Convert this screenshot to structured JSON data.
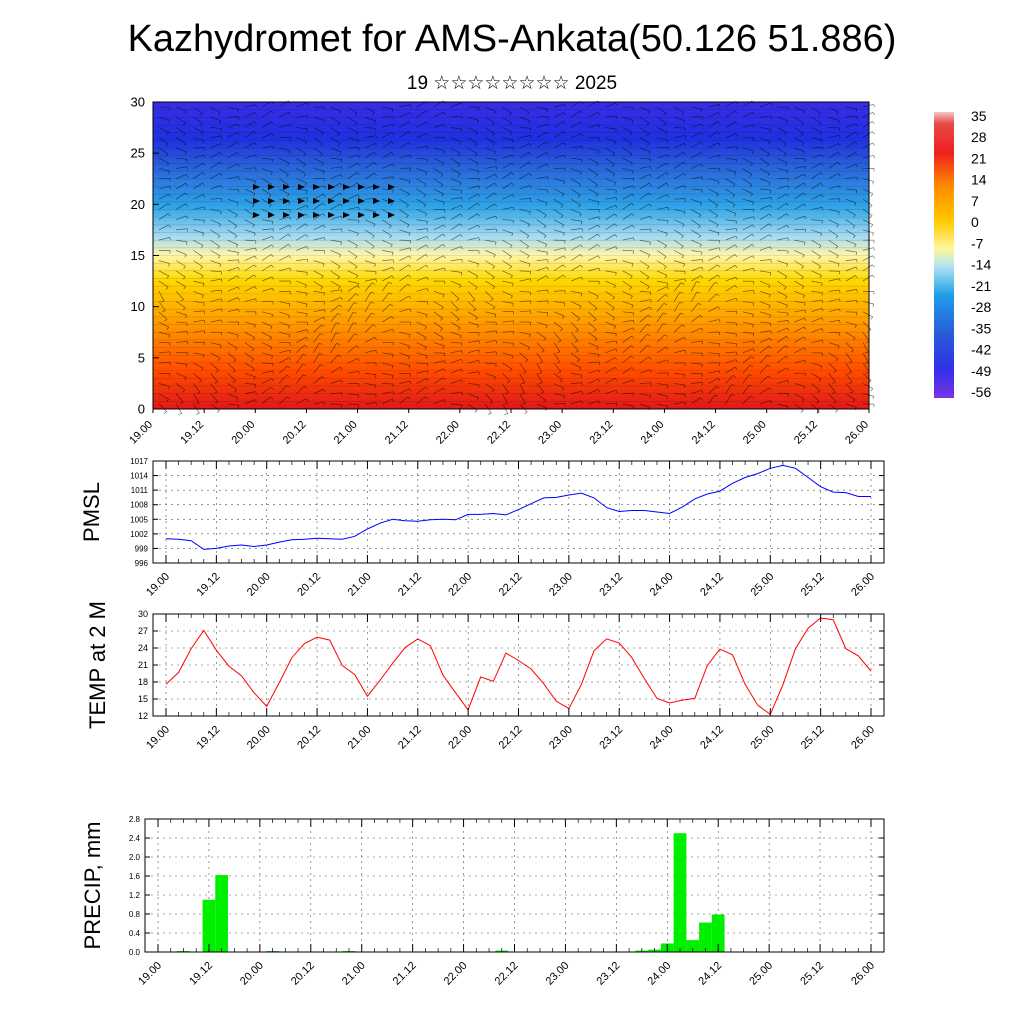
{
  "title": "Kazhydromet for AMS-Ankata(50.126 51.886)",
  "subtitle": "19 ☆☆☆☆☆☆☆☆ 2025",
  "chart_data": [
    {
      "type": "heatmap",
      "id": "cross-section",
      "ylim": [
        0,
        30
      ],
      "yticks": [
        "0",
        "5",
        "10",
        "15",
        "20",
        "25",
        "30"
      ],
      "xticks": [
        "19.00",
        "19.12",
        "20.00",
        "20.12",
        "21.00",
        "21.12",
        "22.00",
        "22.12",
        "23.00",
        "23.12",
        "24.00",
        "24.12",
        "25.00",
        "25.12",
        "26.00"
      ],
      "colorbar": {
        "labels": [
          "35",
          "28",
          "21",
          "14",
          "7",
          "0",
          "-7",
          "-14",
          "-21",
          "-28",
          "-35",
          "-42",
          "-49",
          "-56"
        ],
        "colors": [
          "#f2c8c8",
          "#ee2020",
          "#ff5a00",
          "#ff9b00",
          "#ffd000",
          "#fff7a0",
          "#7ad0f0",
          "#1e9ee6",
          "#2a5ad8",
          "#2a2ae6",
          "#6a3ae6"
        ]
      },
      "overlay": "wind barbs"
    },
    {
      "type": "line",
      "id": "pmsl",
      "ylabel": "PMSL",
      "ylim": [
        996,
        1017
      ],
      "yticks": [
        "996",
        "999",
        "1002",
        "1005",
        "1008",
        "1011",
        "1014",
        "1017"
      ],
      "xticks": [
        "19.00",
        "19.12",
        "20.00",
        "20.12",
        "21.00",
        "21.12",
        "22.00",
        "22.12",
        "23.00",
        "23.12",
        "24.00",
        "24.12",
        "25.00",
        "25.12",
        "26.00"
      ],
      "color": "#0000ff",
      "x": [
        0,
        3,
        6,
        9,
        12,
        15,
        18,
        21,
        24,
        27,
        30,
        33,
        36,
        39,
        42,
        45,
        48,
        51,
        54,
        57,
        60,
        63,
        66,
        69,
        72,
        75,
        78,
        81,
        84,
        87,
        90,
        93,
        96,
        99,
        102,
        105,
        108,
        111,
        114,
        117,
        120,
        123,
        126,
        129,
        132,
        135,
        138,
        141,
        144,
        147,
        150,
        153,
        156,
        159,
        162,
        165,
        168
      ],
      "y": [
        1001.0,
        1000.9,
        1000.6,
        998.8,
        999.0,
        999.5,
        999.7,
        999.4,
        999.7,
        1000.3,
        1000.8,
        1000.9,
        1001.1,
        1001.0,
        1000.9,
        1001.5,
        1003.0,
        1004.2,
        1005.0,
        1004.7,
        1004.6,
        1004.9,
        1005.0,
        1004.9,
        1006.0,
        1006.0,
        1006.2,
        1005.9,
        1007.0,
        1008.2,
        1009.4,
        1009.5,
        1010.0,
        1010.4,
        1009.4,
        1007.4,
        1006.6,
        1006.8,
        1006.8,
        1006.5,
        1006.2,
        1007.5,
        1009.2,
        1010.2,
        1010.8,
        1012.4,
        1013.6,
        1014.4,
        1015.5,
        1016.1,
        1015.5,
        1013.6,
        1011.7,
        1010.6,
        1010.5,
        1009.7,
        1009.7
      ]
    },
    {
      "type": "line",
      "id": "temp2m",
      "ylabel": "TEMP at 2 M",
      "ylim": [
        12,
        30
      ],
      "yticks": [
        "12",
        "15",
        "18",
        "21",
        "24",
        "27",
        "30"
      ],
      "xticks": [
        "19.00",
        "19.12",
        "20.00",
        "20.12",
        "21.00",
        "21.12",
        "22.00",
        "22.12",
        "23.00",
        "23.12",
        "24.00",
        "24.12",
        "25.00",
        "25.12",
        "26.00"
      ],
      "color": "#ff0000",
      "x": [
        0,
        3,
        6,
        9,
        12,
        15,
        18,
        21,
        24,
        27,
        30,
        33,
        36,
        39,
        42,
        45,
        48,
        51,
        54,
        57,
        60,
        63,
        66,
        69,
        72,
        75,
        78,
        81,
        84,
        87,
        90,
        93,
        96,
        99,
        102,
        105,
        108,
        111,
        114,
        117,
        120,
        123,
        126,
        129,
        132,
        135,
        138,
        141,
        144,
        147,
        150,
        153,
        156,
        159,
        162,
        165,
        168
      ],
      "y": [
        17.6,
        19.7,
        23.9,
        27.1,
        23.6,
        20.8,
        19.1,
        16.1,
        13.7,
        17.9,
        22.3,
        24.8,
        25.9,
        25.4,
        20.9,
        19.3,
        15.5,
        18.3,
        21.3,
        24.1,
        25.6,
        24.4,
        19.2,
        16.1,
        13.1,
        18.9,
        18.1,
        23.1,
        21.8,
        20.3,
        17.7,
        14.6,
        13.3,
        17.6,
        23.5,
        25.6,
        24.9,
        22.3,
        18.6,
        15.1,
        14.3,
        14.8,
        15.1,
        20.9,
        23.8,
        22.8,
        17.6,
        13.9,
        12.3,
        17.5,
        23.9,
        27.5,
        29.3,
        29.0,
        23.9,
        22.6,
        19.9
      ]
    },
    {
      "type": "bar",
      "id": "precip",
      "ylabel": "PRECIP, mm",
      "ylim": [
        0,
        2.8
      ],
      "yticks": [
        "0.0",
        "0.4",
        "0.8",
        "1.2",
        "1.6",
        "2.0",
        "2.4",
        "2.8"
      ],
      "xticks": [
        "19.00",
        "19.12",
        "20.00",
        "20.12",
        "21.00",
        "21.12",
        "22.00",
        "22.12",
        "23.00",
        "23.12",
        "24.00",
        "24.12",
        "25.00",
        "25.12",
        "26.00"
      ],
      "color": "#00ee00",
      "x": [
        6,
        12,
        15,
        27,
        45,
        81,
        114,
        117,
        120,
        123,
        126,
        129,
        132
      ],
      "y": [
        0.02,
        1.1,
        1.62,
        0.02,
        0.02,
        0.03,
        0.03,
        0.05,
        0.18,
        2.5,
        0.25,
        0.62,
        0.79
      ]
    }
  ]
}
